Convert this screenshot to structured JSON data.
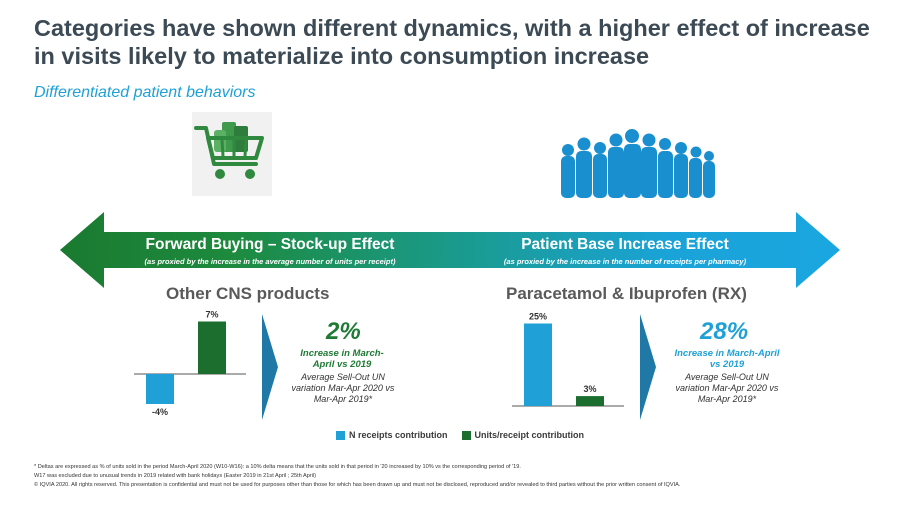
{
  "title": "Categories have shown different dynamics, with a higher effect of increase in visits likely to materialize into consumption increase",
  "subtitle": "Differentiated patient behaviors",
  "icons": {
    "left": "shopping-cart-icon",
    "right": "crowd-icon"
  },
  "arrow": {
    "left_title": "Forward Buying – Stock-up Effect",
    "left_sub": "(as proxied by the increase in the average number of units per receipt)",
    "right_title": "Patient Base Increase Effect",
    "right_sub": "(as proxied by the increase in the number of receipts per pharmacy)"
  },
  "colors": {
    "blue": "#1fa0d6",
    "green": "#1e7a34",
    "dark_green": "#1b6e2d",
    "title": "#3c4a55"
  },
  "left_panel": {
    "section_title": "Other CNS products",
    "big_pct": "2%",
    "increase_text": "Increase in March-April vs 2019",
    "avg_text": "Average Sell-Out UN variation Mar-Apr 2020 vs Mar-Apr 2019*"
  },
  "right_panel": {
    "section_title": "Paracetamol & Ibuprofen (RX)",
    "big_pct": "28%",
    "increase_text": "Increase in March-April vs 2019",
    "avg_text": "Average Sell-Out UN variation Mar-Apr 2020 vs Mar-Apr 2019*"
  },
  "legend": {
    "blue_label": "N receipts contribution",
    "green_label": "Units/receipt contribution"
  },
  "chart_data": [
    {
      "type": "bar",
      "categories": [
        "N receipts contribution",
        "Units/receipt contribution"
      ],
      "values": [
        -4,
        7
      ],
      "labels": [
        "-4%",
        "7%"
      ],
      "title": "Other CNS products"
    },
    {
      "type": "bar",
      "categories": [
        "N receipts contribution",
        "Units/receipt contribution"
      ],
      "values": [
        25,
        3
      ],
      "labels": [
        "25%",
        "3%"
      ],
      "title": "Paracetamol & Ibuprofen (RX)"
    }
  ],
  "footnote": {
    "line1": "* Deltas are expressed as % of units sold in the period March-April 2020 (W10-W16): a 10% delta means that the units sold in that period in '20 increased by 10% vs the corresponding period of '19.",
    "line2": "W17 was excluded due to unusual trends in 2019 related with bank holidays (Easter 2019 in 21st April ; 25th April)",
    "line3": "© IQVIA 2020. All rights reserved. This presentation is confidential and must not be used for purposes other than those for which has been drawn up and must not be disclosed, reproduced and/or revealed to third parties without the prior written consent of IQVIA."
  }
}
